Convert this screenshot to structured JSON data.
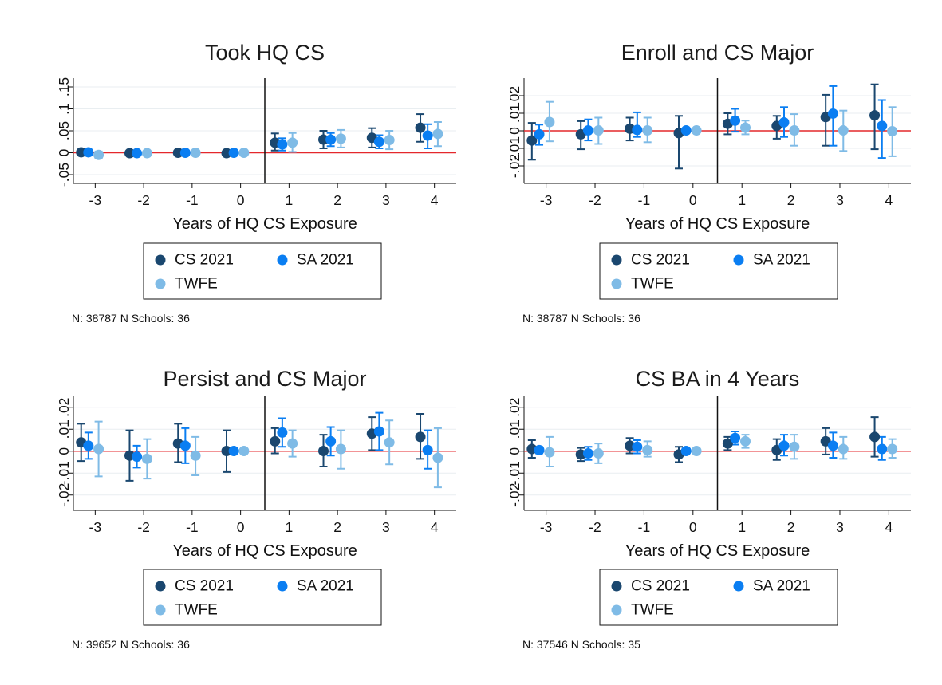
{
  "chart_data": [
    {
      "type": "scatter",
      "title": "Took HQ CS",
      "xlabel": "Years of HQ CS Exposure",
      "ylabel": "",
      "x": [
        -3,
        -2,
        -1,
        0,
        1,
        2,
        3,
        4
      ],
      "xlim": [
        -3.45,
        4.45
      ],
      "ylim": [
        -0.07,
        0.17
      ],
      "yticks": [
        -0.05,
        0,
        0.05,
        0.1,
        0.15
      ],
      "ytick_labels": [
        "-.05",
        "0",
        ".05",
        ".1",
        ".15"
      ],
      "reference_x": 0.5,
      "reference_y": 0,
      "grid": true,
      "legend_position": "bottom",
      "series": [
        {
          "name": "CS 2021",
          "color": "#1a476f",
          "values": [
            0.001,
            -0.001,
            0.0,
            -0.001,
            0.023,
            0.03,
            0.034,
            0.057
          ],
          "ci_low": [
            -0.003,
            -0.004,
            -0.003,
            -0.004,
            0.005,
            0.01,
            0.012,
            0.025
          ],
          "ci_high": [
            0.005,
            0.002,
            0.003,
            0.002,
            0.044,
            0.05,
            0.056,
            0.088
          ]
        },
        {
          "name": "SA 2021",
          "color": "#0a7ef2",
          "values": [
            0.001,
            -0.001,
            0.0,
            0.0,
            0.019,
            0.03,
            0.025,
            0.039
          ],
          "ci_low": [
            -0.003,
            -0.004,
            -0.003,
            -0.003,
            0.005,
            0.015,
            0.01,
            0.01
          ],
          "ci_high": [
            0.005,
            0.002,
            0.003,
            0.003,
            0.033,
            0.045,
            0.04,
            0.065
          ]
        },
        {
          "name": "TWFE",
          "color": "#7fbbe6",
          "values": [
            -0.005,
            -0.001,
            0.0,
            0.0,
            0.023,
            0.032,
            0.029,
            0.043
          ],
          "ci_low": [
            -0.013,
            -0.004,
            -0.003,
            -0.003,
            0.002,
            0.012,
            0.008,
            0.015
          ],
          "ci_high": [
            0.003,
            0.002,
            0.003,
            0.003,
            0.045,
            0.052,
            0.05,
            0.07
          ]
        }
      ],
      "note": "N: 38787 N Schools: 36"
    },
    {
      "type": "scatter",
      "title": "Enroll and CS Major",
      "xlabel": "Years of HQ CS Exposure",
      "ylabel": "",
      "x": [
        -3,
        -2,
        -1,
        0,
        1,
        2,
        3,
        4
      ],
      "xlim": [
        -3.45,
        4.45
      ],
      "ylim": [
        -0.03,
        0.03
      ],
      "yticks": [
        -0.02,
        -0.01,
        0,
        0.01,
        0.02
      ],
      "ytick_labels": [
        "-.02",
        "-.01",
        "0",
        ".01",
        ".02"
      ],
      "reference_x": 0.5,
      "reference_y": 0,
      "grid": true,
      "legend_position": "bottom",
      "series": [
        {
          "name": "CS 2021",
          "color": "#1a476f",
          "values": [
            -0.0055,
            -0.002,
            0.0012,
            -0.0013,
            0.004,
            0.0028,
            0.0078,
            0.0088
          ],
          "ci_low": [
            -0.0165,
            -0.0105,
            -0.0055,
            -0.0215,
            -0.002,
            -0.0045,
            -0.0085,
            -0.0105
          ],
          "ci_high": [
            0.0045,
            0.0055,
            0.0075,
            0.0085,
            0.01,
            0.0085,
            0.0205,
            0.0265
          ]
        },
        {
          "name": "SA 2021",
          "color": "#0a7ef2",
          "values": [
            -0.002,
            0.0002,
            0.0005,
            0.0002,
            0.0058,
            0.0048,
            0.0098,
            0.0028
          ],
          "ci_low": [
            -0.008,
            -0.0055,
            -0.0035,
            -0.0005,
            -0.0005,
            -0.0035,
            -0.0085,
            -0.0155
          ],
          "ci_high": [
            0.0035,
            0.0065,
            0.0105,
            0.001,
            0.0125,
            0.0135,
            0.0255,
            0.0175
          ]
        },
        {
          "name": "TWFE",
          "color": "#7fbbe6",
          "values": [
            0.005,
            0.0002,
            0.0002,
            0.0002,
            0.0018,
            0.0002,
            0.0002,
            -0.0002
          ],
          "ci_low": [
            -0.006,
            -0.0075,
            -0.0065,
            -0.0005,
            -0.002,
            -0.0085,
            -0.0115,
            -0.0145
          ],
          "ci_high": [
            0.0165,
            0.0075,
            0.0075,
            0.001,
            0.0058,
            0.0095,
            0.0115,
            0.0135
          ]
        }
      ],
      "note": "N: 38787 N Schools: 36"
    },
    {
      "type": "scatter",
      "title": "Persist and CS Major",
      "xlabel": "Years of HQ CS Exposure",
      "ylabel": "",
      "x": [
        -3,
        -2,
        -1,
        0,
        1,
        2,
        3,
        4
      ],
      "xlim": [
        -3.45,
        4.45
      ],
      "ylim": [
        -0.027,
        0.025
      ],
      "yticks": [
        -0.02,
        -0.01,
        0,
        0.01,
        0.02
      ],
      "ytick_labels": [
        "-.02",
        "-.01",
        "0",
        ".01",
        ".02"
      ],
      "reference_x": 0.5,
      "reference_y": 0,
      "grid": true,
      "legend_position": "bottom",
      "series": [
        {
          "name": "CS 2021",
          "color": "#1a476f",
          "values": [
            0.004,
            -0.002,
            0.0035,
            0.0001,
            0.0045,
            0.0001,
            0.008,
            0.0065
          ],
          "ci_low": [
            -0.0045,
            -0.0135,
            -0.005,
            -0.0095,
            -0.001,
            -0.007,
            0.0005,
            -0.0035
          ],
          "ci_high": [
            0.0125,
            0.0095,
            0.0125,
            0.0095,
            0.0105,
            0.0075,
            0.0155,
            0.017
          ]
        },
        {
          "name": "SA 2021",
          "color": "#0a7ef2",
          "values": [
            0.0025,
            -0.0025,
            0.0025,
            0.0001,
            0.0085,
            0.0045,
            0.009,
            0.0005
          ],
          "ci_low": [
            -0.0035,
            -0.0075,
            -0.0055,
            -0.0005,
            0.002,
            -0.002,
            0.0005,
            -0.008
          ],
          "ci_high": [
            0.0085,
            0.0025,
            0.0105,
            0.001,
            0.015,
            0.011,
            0.0175,
            0.0095
          ]
        },
        {
          "name": "TWFE",
          "color": "#7fbbe6",
          "values": [
            0.001,
            -0.0035,
            -0.002,
            0.0001,
            0.0035,
            0.001,
            0.004,
            -0.003
          ],
          "ci_low": [
            -0.0115,
            -0.0125,
            -0.011,
            -0.0005,
            -0.0025,
            -0.008,
            -0.006,
            -0.0165
          ],
          "ci_high": [
            0.0135,
            0.0055,
            0.0065,
            0.001,
            0.0095,
            0.0095,
            0.014,
            0.0105
          ]
        }
      ],
      "note": "N: 39652 N Schools: 36"
    },
    {
      "type": "scatter",
      "title": "CS BA in 4 Years",
      "xlabel": "Years of HQ CS Exposure",
      "ylabel": "",
      "x": [
        -3,
        -2,
        -1,
        0,
        1,
        2,
        3,
        4
      ],
      "xlim": [
        -3.45,
        4.45
      ],
      "ylim": [
        -0.027,
        0.025
      ],
      "yticks": [
        -0.02,
        -0.01,
        0,
        0.01,
        0.02
      ],
      "ytick_labels": [
        "-.02",
        "-.01",
        "0",
        ".01",
        ".02"
      ],
      "reference_x": 0.5,
      "reference_y": 0,
      "grid": true,
      "legend_position": "bottom",
      "series": [
        {
          "name": "CS 2021",
          "color": "#1a476f",
          "values": [
            0.001,
            -0.0015,
            0.0025,
            -0.0015,
            0.0035,
            0.0005,
            0.0045,
            0.0065
          ],
          "ci_low": [
            -0.003,
            -0.0045,
            -0.001,
            -0.005,
            0.0005,
            -0.004,
            -0.0015,
            -0.0025
          ],
          "ci_high": [
            0.005,
            0.0015,
            0.006,
            0.002,
            0.0065,
            0.0055,
            0.0105,
            0.0155
          ]
        },
        {
          "name": "SA 2021",
          "color": "#0a7ef2",
          "values": [
            0.0005,
            -0.001,
            0.002,
            0.0001,
            0.006,
            0.0025,
            0.0025,
            0.001
          ],
          "ci_low": [
            -0.001,
            -0.004,
            -0.001,
            -0.0005,
            0.003,
            -0.002,
            -0.003,
            -0.004
          ],
          "ci_high": [
            0.002,
            0.002,
            0.005,
            0.001,
            0.009,
            0.0075,
            0.0085,
            0.0065
          ]
        },
        {
          "name": "TWFE",
          "color": "#7fbbe6",
          "values": [
            -0.0005,
            -0.001,
            0.0005,
            0.0001,
            0.0045,
            0.002,
            0.001,
            0.001
          ],
          "ci_low": [
            -0.007,
            -0.0055,
            -0.0025,
            -0.0005,
            0.0015,
            -0.0035,
            -0.0035,
            -0.003
          ],
          "ci_high": [
            0.0065,
            0.0035,
            0.0045,
            0.001,
            0.0075,
            0.0075,
            0.0065,
            0.0055
          ]
        }
      ],
      "note": "N: 37546 N Schools: 35"
    }
  ]
}
